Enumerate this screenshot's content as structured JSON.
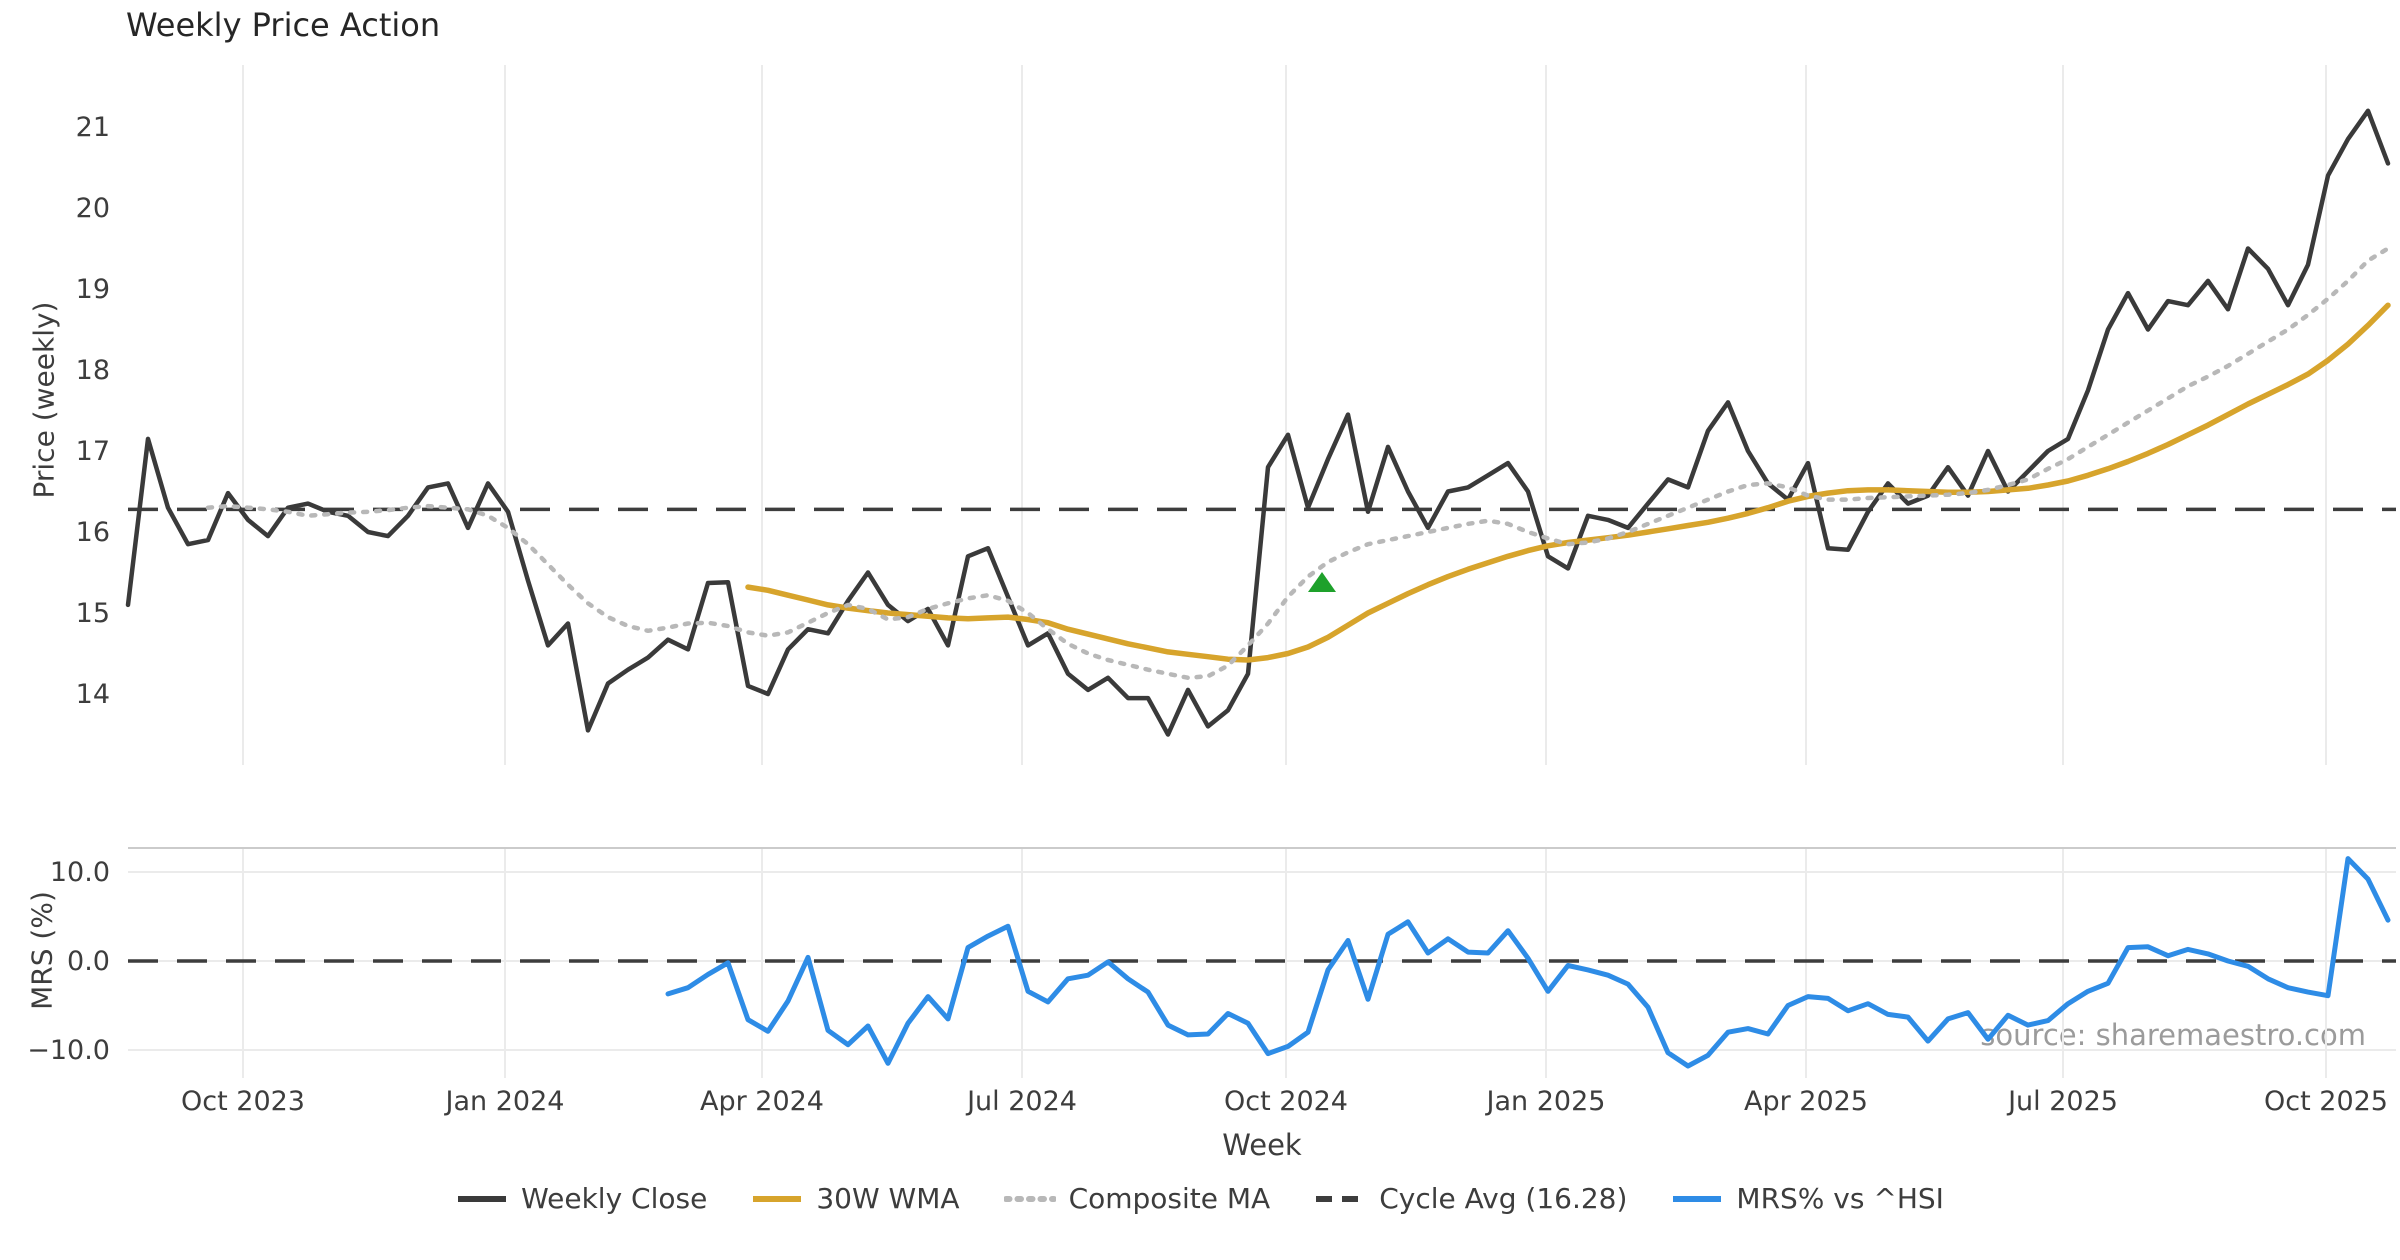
{
  "title": "Weekly Price Action",
  "source_note": "source: sharemaestro.com",
  "colors": {
    "close": "#3a3a3a",
    "wma": "#d7a42c",
    "composite": "#b8b8b8",
    "cycle": "#3d3d3d",
    "mrs": "#2e8ce6",
    "marker": "#1ea12b",
    "grid": "#ebebeb",
    "spine": "#cbcbcb",
    "tick_text": "#3d3d3d"
  },
  "legend": {
    "items": [
      {
        "label": "Weekly Close",
        "style": "solid",
        "color": "#3a3a3a"
      },
      {
        "label": "30W WMA",
        "style": "solid",
        "color": "#d7a42c"
      },
      {
        "label": "Composite MA",
        "style": "dotted",
        "color": "#b8b8b8"
      },
      {
        "label": "Cycle Avg (16.28)",
        "style": "dashed",
        "color": "#3d3d3d"
      },
      {
        "label": "MRS% vs ^HSI",
        "style": "solid",
        "color": "#2e8ce6"
      }
    ]
  },
  "chart_data": {
    "type": "line",
    "xlabel": "Week",
    "xticks": [
      {
        "label": "Oct 2023",
        "week": 5.75
      },
      {
        "label": "Jan 2024",
        "week": 18.85
      },
      {
        "label": "Apr 2024",
        "week": 31.7
      },
      {
        "label": "Jul 2024",
        "week": 44.7
      },
      {
        "label": "Oct 2024",
        "week": 57.9
      },
      {
        "label": "Jan 2025",
        "week": 70.9
      },
      {
        "label": "Apr 2025",
        "week": 83.9
      },
      {
        "label": "Jul 2025",
        "week": 96.75
      },
      {
        "label": "Oct 2025",
        "week": 109.9
      }
    ],
    "price_panel": {
      "ylabel": "Price (weekly)",
      "ylim": [
        13.1,
        21.75
      ],
      "yticks": [
        21,
        20,
        19,
        18,
        17,
        16,
        15,
        14
      ],
      "cycle_avg": 16.28,
      "grid": "vertical-only"
    },
    "mrs_panel": {
      "ylabel": "MRS (%)",
      "ylim": [
        -12.8,
        12.7
      ],
      "yticks": [
        {
          "label": "10.0",
          "value": 10
        },
        {
          "label": "0.0",
          "value": 0
        },
        {
          "label": "−10.0",
          "value": -10
        }
      ],
      "zero_line": 0,
      "grid": "horizontal-and-vertical"
    },
    "series": [
      {
        "name": "Weekly Close",
        "panel": "price",
        "start_week": 0,
        "values": [
          15.1,
          17.15,
          16.3,
          15.85,
          15.9,
          16.48,
          16.15,
          15.95,
          16.3,
          16.35,
          16.25,
          16.2,
          16.0,
          15.95,
          16.2,
          16.55,
          16.6,
          16.05,
          16.6,
          16.25,
          15.4,
          14.6,
          14.87,
          13.55,
          14.13,
          14.3,
          14.45,
          14.67,
          14.55,
          15.37,
          15.38,
          14.1,
          14.0,
          14.55,
          14.8,
          14.75,
          15.15,
          15.5,
          15.1,
          14.9,
          15.05,
          14.6,
          15.7,
          15.8,
          15.2,
          14.6,
          14.75,
          14.25,
          14.05,
          14.2,
          13.95,
          13.95,
          13.5,
          14.05,
          13.6,
          13.8,
          14.25,
          16.8,
          17.2,
          16.3,
          16.9,
          17.45,
          16.25,
          17.05,
          16.5,
          16.05,
          16.5,
          16.55,
          16.7,
          16.85,
          16.5,
          15.7,
          15.55,
          16.2,
          16.15,
          16.05,
          16.35,
          16.65,
          16.55,
          17.25,
          17.6,
          17.0,
          16.6,
          16.4,
          16.85,
          15.8,
          15.78,
          16.25,
          16.6,
          16.35,
          16.45,
          16.8,
          16.45,
          17.0,
          16.5,
          16.75,
          17.0,
          17.15,
          17.75,
          18.5,
          18.95,
          18.5,
          18.85,
          18.8,
          19.1,
          18.75,
          19.5,
          19.25,
          18.8,
          19.3,
          20.4,
          20.85,
          21.2,
          20.55
        ]
      },
      {
        "name": "30W WMA",
        "panel": "price",
        "start_week": 31,
        "values": [
          15.32,
          15.28,
          15.22,
          15.16,
          15.1,
          15.06,
          15.03,
          15.0,
          14.98,
          14.96,
          14.94,
          14.93,
          14.94,
          14.95,
          14.92,
          14.88,
          14.8,
          14.74,
          14.68,
          14.62,
          14.57,
          14.52,
          14.49,
          14.46,
          14.43,
          14.42,
          14.45,
          14.5,
          14.58,
          14.7,
          14.85,
          15.0,
          15.12,
          15.24,
          15.35,
          15.45,
          15.54,
          15.62,
          15.7,
          15.77,
          15.83,
          15.87,
          15.9,
          15.93,
          15.96,
          16.0,
          16.04,
          16.08,
          16.12,
          16.17,
          16.23,
          16.3,
          16.38,
          16.44,
          16.48,
          16.51,
          16.52,
          16.52,
          16.51,
          16.5,
          16.49,
          16.49,
          16.5,
          16.52,
          16.54,
          16.58,
          16.63,
          16.7,
          16.78,
          16.87,
          16.97,
          17.08,
          17.2,
          17.32,
          17.45,
          17.58,
          17.7,
          17.82,
          17.95,
          18.12,
          18.32,
          18.55,
          18.8
        ]
      },
      {
        "name": "Composite MA",
        "panel": "price",
        "start_week": 4,
        "values": [
          16.3,
          16.32,
          16.3,
          16.28,
          16.25,
          16.2,
          16.22,
          16.24,
          16.25,
          16.27,
          16.3,
          16.32,
          16.3,
          16.28,
          16.2,
          16.05,
          15.85,
          15.6,
          15.35,
          15.12,
          14.95,
          14.84,
          14.78,
          14.82,
          14.87,
          14.88,
          14.84,
          14.76,
          14.72,
          14.76,
          14.88,
          15.0,
          15.1,
          15.05,
          14.92,
          14.95,
          15.05,
          15.12,
          15.18,
          15.22,
          15.15,
          15.0,
          14.8,
          14.62,
          14.5,
          14.42,
          14.36,
          14.3,
          14.25,
          14.2,
          14.22,
          14.35,
          14.6,
          14.87,
          15.2,
          15.45,
          15.63,
          15.75,
          15.85,
          15.9,
          15.95,
          16.0,
          16.05,
          16.1,
          16.14,
          16.1,
          16.0,
          15.92,
          15.85,
          15.87,
          15.92,
          16.0,
          16.1,
          16.2,
          16.3,
          16.4,
          16.5,
          16.58,
          16.6,
          16.55,
          16.45,
          16.4,
          16.4,
          16.42,
          16.43,
          16.44,
          16.45,
          16.46,
          16.48,
          16.52,
          16.58,
          16.65,
          16.78,
          16.9,
          17.05,
          17.2,
          17.35,
          17.5,
          17.65,
          17.8,
          17.92,
          18.05,
          18.2,
          18.35,
          18.5,
          18.68,
          18.88,
          19.1,
          19.35,
          19.5
        ]
      },
      {
        "name": "MRS% vs ^HSI",
        "panel": "mrs",
        "start_week": 27,
        "values": [
          -3.7,
          -3.0,
          -1.5,
          -0.2,
          -6.6,
          -7.9,
          -4.5,
          0.4,
          -7.8,
          -9.4,
          -7.3,
          -11.5,
          -7.0,
          -4.0,
          -6.5,
          1.5,
          2.8,
          3.9,
          -3.4,
          -4.6,
          -2.0,
          -1.6,
          -0.1,
          -2.0,
          -3.5,
          -7.2,
          -8.3,
          -8.2,
          -5.9,
          -7.0,
          -10.4,
          -9.6,
          -8.0,
          -1.0,
          2.3,
          -4.3,
          3.0,
          4.4,
          0.9,
          2.5,
          1.0,
          0.9,
          3.4,
          0.3,
          -3.4,
          -0.5,
          -1.0,
          -1.6,
          -2.6,
          -5.2,
          -10.3,
          -11.8,
          -10.6,
          -8.0,
          -7.6,
          -8.2,
          -5.0,
          -4.0,
          -4.2,
          -5.6,
          -4.8,
          -6.0,
          -6.3,
          -9.0,
          -6.5,
          -5.8,
          -8.8,
          -6.1,
          -7.2,
          -6.7,
          -4.8,
          -3.4,
          -2.5,
          1.5,
          1.6,
          0.6,
          1.3,
          0.8,
          0.0,
          -0.6,
          -2.0,
          -3.0,
          -3.5,
          -3.9,
          11.5,
          9.2,
          4.6
        ]
      }
    ],
    "marker": {
      "name": "buy-signal",
      "shape": "triangle-up",
      "week": 59.7,
      "price": 15.37,
      "color": "#1ea12b"
    }
  }
}
